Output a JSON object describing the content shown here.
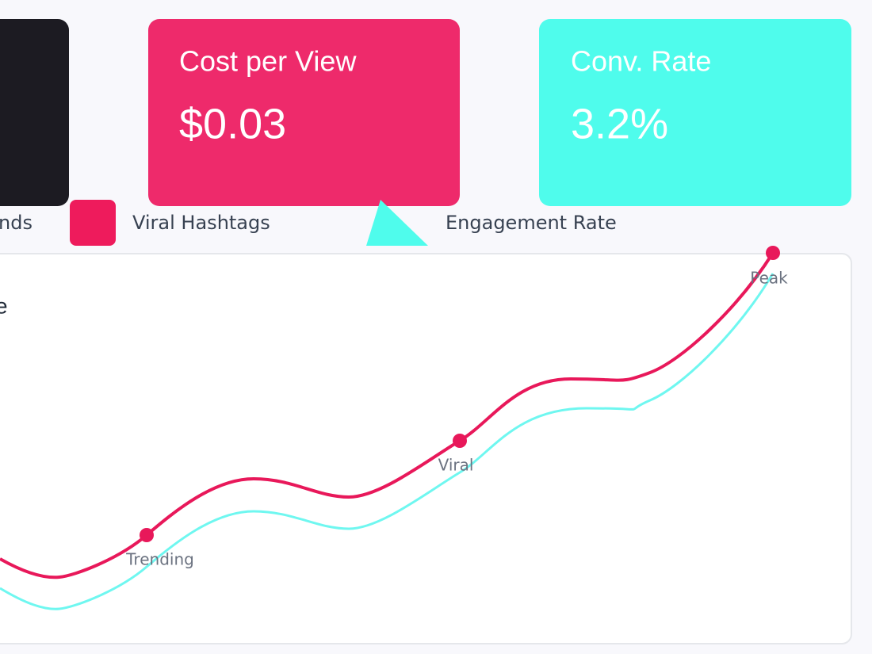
{
  "cards": [
    {
      "title": "Cost per View",
      "value": "$0.03"
    },
    {
      "title": "Conv. Rate",
      "value": "3.2%"
    }
  ],
  "legend": [
    "nds",
    "Viral Hashtags",
    "Engagement Rate"
  ],
  "panel": {
    "title": "e",
    "annotations": [
      "Trending",
      "Viral",
      "Peak"
    ]
  }
}
